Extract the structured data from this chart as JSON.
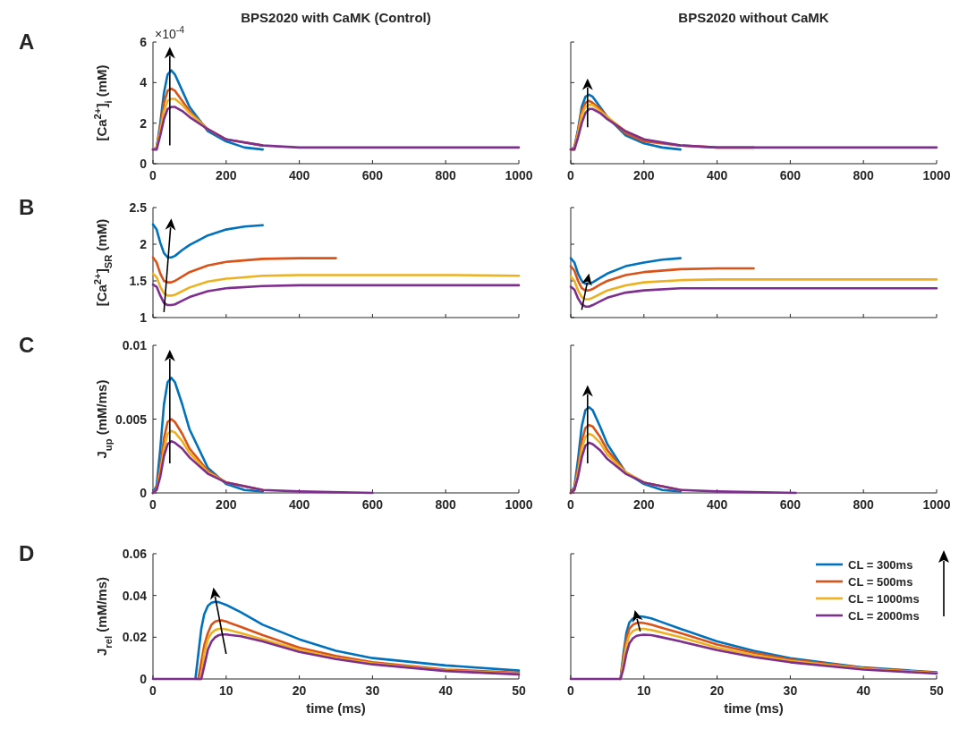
{
  "chart_data": [
    {
      "type": "line",
      "title": "BPS2020 with CaMK (Control)",
      "ylabel": "[Ca$^{2+}$]$_{i}$ (mM)",
      "annotations": [
        "A",
        "×10$^{-4}$"
      ],
      "xlim": [
        0,
        1000
      ],
      "xticks": [
        0,
        200,
        400,
        600,
        800,
        1000
      ],
      "ylim": [
        0,
        6
      ],
      "yticks": [
        0,
        2,
        4,
        6
      ],
      "series": [
        {
          "color": "#0072bd",
          "x": [
            0,
            10,
            20,
            30,
            40,
            50,
            60,
            80,
            100,
            150,
            200,
            250,
            300
          ],
          "values": [
            0.7,
            0.8,
            2,
            3.5,
            4.4,
            4.6,
            4.4,
            3.6,
            2.8,
            1.6,
            1.1,
            0.8,
            0.7
          ]
        },
        {
          "color": "#d95319",
          "x": [
            0,
            10,
            20,
            30,
            40,
            50,
            60,
            80,
            100,
            150,
            200,
            300
          ],
          "values": [
            0.7,
            0.8,
            1.8,
            3,
            3.6,
            3.7,
            3.6,
            3.1,
            2.6,
            1.7,
            1.2,
            0.9
          ]
        },
        {
          "color": "#edb120",
          "x": [
            0,
            10,
            20,
            30,
            40,
            50,
            60,
            80,
            100,
            150,
            200
          ],
          "values": [
            0.7,
            0.8,
            1.6,
            2.6,
            3.1,
            3.2,
            3.2,
            2.9,
            2.5,
            1.7,
            1.2
          ]
        },
        {
          "color": "#7e2f8e",
          "x": [
            0,
            10,
            20,
            30,
            40,
            50,
            60,
            80,
            100,
            150,
            200,
            300,
            400,
            600,
            800,
            1000
          ],
          "values": [
            0.7,
            0.7,
            1.4,
            2.2,
            2.7,
            2.8,
            2.8,
            2.6,
            2.3,
            1.7,
            1.2,
            0.9,
            0.8,
            0.8,
            0.8,
            0.8
          ]
        }
      ]
    },
    {
      "type": "line",
      "title": "BPS2020 without CaMK",
      "tick_labels": "x",
      "xlim": [
        0,
        1000
      ],
      "xticks": [
        0,
        200,
        400,
        600,
        800,
        1000
      ],
      "ylim": [
        0,
        6
      ],
      "yticks": [
        0,
        2,
        4,
        6
      ],
      "series": [
        {
          "color": "#0072bd",
          "x": [
            0,
            10,
            20,
            30,
            40,
            50,
            60,
            80,
            100,
            150,
            200,
            250,
            300
          ],
          "values": [
            0.7,
            0.8,
            1.7,
            2.8,
            3.3,
            3.4,
            3.3,
            2.8,
            2.3,
            1.4,
            1,
            0.8,
            0.7
          ]
        },
        {
          "color": "#d95319",
          "x": [
            0,
            10,
            20,
            30,
            40,
            50,
            60,
            80,
            100,
            150,
            200,
            300,
            400,
            500
          ],
          "values": [
            0.7,
            0.8,
            1.6,
            2.6,
            3,
            3.1,
            3,
            2.7,
            2.3,
            1.5,
            1.1,
            0.9,
            0.8,
            0.8
          ]
        },
        {
          "color": "#edb120",
          "x": [
            0,
            10,
            20,
            30,
            40,
            50,
            60,
            80,
            100,
            150,
            200
          ],
          "values": [
            0.7,
            0.7,
            1.5,
            2.4,
            2.8,
            2.9,
            2.9,
            2.6,
            2.3,
            1.6,
            1.2
          ]
        },
        {
          "color": "#7e2f8e",
          "x": [
            0,
            10,
            20,
            30,
            40,
            50,
            60,
            80,
            100,
            150,
            200,
            300,
            400,
            600,
            800,
            1000
          ],
          "values": [
            0.7,
            0.7,
            1.3,
            2,
            2.5,
            2.7,
            2.7,
            2.5,
            2.2,
            1.6,
            1.2,
            0.9,
            0.8,
            0.8,
            0.8,
            0.8
          ]
        }
      ]
    },
    {
      "type": "line",
      "ylabel": "[Ca$^{2+}$]$_{SR}$ (mM)",
      "annotations": [
        "B"
      ],
      "tick_labels": "y",
      "xlim": [
        0,
        1000
      ],
      "xticks": [
        0,
        200,
        400,
        600,
        800,
        1000
      ],
      "ylim": [
        1,
        2.5
      ],
      "yticks": [
        1,
        1.5,
        2,
        2.5
      ],
      "series": [
        {
          "color": "#0072bd",
          "x": [
            0,
            10,
            20,
            30,
            40,
            50,
            60,
            80,
            100,
            150,
            200,
            250,
            300
          ],
          "values": [
            2.27,
            2.2,
            2.02,
            1.88,
            1.82,
            1.82,
            1.84,
            1.92,
            1.99,
            2.12,
            2.2,
            2.24,
            2.26
          ]
        },
        {
          "color": "#d95319",
          "x": [
            0,
            10,
            20,
            30,
            40,
            50,
            60,
            80,
            100,
            150,
            200,
            300,
            400,
            500
          ],
          "values": [
            1.82,
            1.75,
            1.6,
            1.5,
            1.48,
            1.48,
            1.5,
            1.56,
            1.62,
            1.71,
            1.76,
            1.8,
            1.81,
            1.81
          ]
        },
        {
          "color": "#edb120",
          "x": [
            0,
            10,
            20,
            30,
            40,
            50,
            60,
            80,
            100,
            150,
            200,
            300,
            400,
            600,
            800,
            1000
          ],
          "values": [
            1.6,
            1.55,
            1.42,
            1.33,
            1.3,
            1.3,
            1.31,
            1.36,
            1.41,
            1.49,
            1.53,
            1.57,
            1.58,
            1.58,
            1.58,
            1.57
          ]
        },
        {
          "color": "#7e2f8e",
          "x": [
            0,
            10,
            20,
            30,
            40,
            50,
            60,
            80,
            100,
            150,
            200,
            300,
            400,
            600,
            800,
            1000
          ],
          "values": [
            1.45,
            1.42,
            1.3,
            1.2,
            1.17,
            1.17,
            1.18,
            1.23,
            1.28,
            1.36,
            1.4,
            1.43,
            1.44,
            1.44,
            1.44,
            1.44
          ]
        }
      ]
    },
    {
      "type": "line",
      "tick_labels": false,
      "xlim": [
        0,
        1000
      ],
      "xticks": [
        0,
        200,
        400,
        600,
        800,
        1000
      ],
      "ylim": [
        1,
        2.5
      ],
      "yticks": [
        1,
        1.5,
        2,
        2.5
      ],
      "series": [
        {
          "color": "#0072bd",
          "x": [
            0,
            10,
            20,
            30,
            40,
            50,
            60,
            80,
            100,
            150,
            200,
            250,
            300
          ],
          "values": [
            1.81,
            1.75,
            1.6,
            1.5,
            1.46,
            1.46,
            1.48,
            1.54,
            1.6,
            1.7,
            1.75,
            1.79,
            1.81
          ]
        },
        {
          "color": "#d95319",
          "x": [
            0,
            10,
            20,
            30,
            40,
            50,
            60,
            80,
            100,
            150,
            200,
            300,
            400,
            500
          ],
          "values": [
            1.7,
            1.64,
            1.5,
            1.4,
            1.37,
            1.37,
            1.39,
            1.45,
            1.5,
            1.58,
            1.62,
            1.66,
            1.67,
            1.67
          ]
        },
        {
          "color": "#edb120",
          "x": [
            0,
            10,
            20,
            30,
            40,
            50,
            60,
            80,
            100,
            150,
            200,
            300,
            400,
            600,
            800,
            1000
          ],
          "values": [
            1.56,
            1.5,
            1.37,
            1.28,
            1.25,
            1.25,
            1.27,
            1.32,
            1.37,
            1.44,
            1.48,
            1.51,
            1.52,
            1.52,
            1.52,
            1.52
          ]
        },
        {
          "color": "#7e2f8e",
          "x": [
            0,
            10,
            20,
            30,
            40,
            50,
            60,
            80,
            100,
            150,
            200,
            300,
            400,
            600,
            800,
            1000
          ],
          "values": [
            1.42,
            1.38,
            1.26,
            1.18,
            1.15,
            1.15,
            1.17,
            1.22,
            1.27,
            1.34,
            1.37,
            1.4,
            1.4,
            1.4,
            1.4,
            1.4
          ]
        }
      ]
    },
    {
      "type": "line",
      "ylabel": "J$_{up}$ (mM/ms)",
      "annotations": [
        "C"
      ],
      "xlim": [
        0,
        1000
      ],
      "xticks": [
        0,
        200,
        400,
        600,
        800,
        1000
      ],
      "ylim": [
        0,
        0.01
      ],
      "yticks": [
        0,
        0.005,
        0.01
      ],
      "series": [
        {
          "color": "#0072bd",
          "x": [
            0,
            10,
            20,
            30,
            40,
            50,
            60,
            80,
            100,
            150,
            200,
            250,
            300
          ],
          "values": [
            0,
            0.0005,
            0.003,
            0.006,
            0.0075,
            0.0078,
            0.0075,
            0.006,
            0.0043,
            0.0017,
            0.0006,
            0.0002,
            0.0001
          ]
        },
        {
          "color": "#d95319",
          "x": [
            0,
            10,
            20,
            30,
            40,
            50,
            60,
            80,
            100,
            150,
            200,
            300
          ],
          "values": [
            0,
            0.0003,
            0.0018,
            0.0037,
            0.0048,
            0.005,
            0.0048,
            0.004,
            0.003,
            0.0015,
            0.0007,
            0.0002
          ]
        },
        {
          "color": "#edb120",
          "x": [
            0,
            10,
            20,
            30,
            40,
            50,
            60,
            80,
            100,
            150,
            200,
            300
          ],
          "values": [
            0,
            0.0002,
            0.0014,
            0.003,
            0.004,
            0.0042,
            0.0041,
            0.0035,
            0.0027,
            0.0014,
            0.0007,
            0.0002
          ]
        },
        {
          "color": "#7e2f8e",
          "x": [
            0,
            10,
            20,
            30,
            40,
            50,
            60,
            80,
            100,
            150,
            200,
            300,
            400,
            600
          ],
          "values": [
            0,
            0.0002,
            0.0011,
            0.0025,
            0.0033,
            0.0035,
            0.0034,
            0.003,
            0.0024,
            0.0013,
            0.0007,
            0.0002,
            0.0001,
            0
          ]
        }
      ]
    },
    {
      "type": "line",
      "tick_labels": "x",
      "xlim": [
        0,
        1000
      ],
      "xticks": [
        0,
        200,
        400,
        600,
        800,
        1000
      ],
      "ylim": [
        0,
        0.01
      ],
      "yticks": [
        0,
        0.005,
        0.01
      ],
      "series": [
        {
          "color": "#0072bd",
          "x": [
            0,
            10,
            20,
            30,
            40,
            50,
            60,
            80,
            100,
            150,
            200,
            250,
            300
          ],
          "values": [
            0,
            0.0004,
            0.0023,
            0.0045,
            0.0056,
            0.0058,
            0.0056,
            0.0045,
            0.0033,
            0.0014,
            0.0006,
            0.0002,
            0.0001
          ]
        },
        {
          "color": "#d95319",
          "x": [
            0,
            10,
            20,
            30,
            40,
            50,
            60,
            80,
            100,
            150,
            200,
            300
          ],
          "values": [
            0,
            0.0003,
            0.0017,
            0.0035,
            0.0044,
            0.0046,
            0.0045,
            0.0038,
            0.0029,
            0.0014,
            0.0007,
            0.0002
          ]
        },
        {
          "color": "#edb120",
          "x": [
            0,
            10,
            20,
            30,
            40,
            50,
            60,
            80,
            100,
            150,
            200,
            300
          ],
          "values": [
            0,
            0.0002,
            0.0014,
            0.003,
            0.0038,
            0.004,
            0.0039,
            0.0034,
            0.0026,
            0.0014,
            0.0007,
            0.0002
          ]
        },
        {
          "color": "#7e2f8e",
          "x": [
            0,
            10,
            20,
            30,
            40,
            50,
            60,
            80,
            100,
            150,
            200,
            300,
            400,
            615
          ],
          "values": [
            0,
            0.0002,
            0.0011,
            0.0024,
            0.0032,
            0.0034,
            0.0033,
            0.0029,
            0.0023,
            0.0013,
            0.0007,
            0.0002,
            0.0001,
            0
          ]
        }
      ]
    },
    {
      "type": "line",
      "ylabel": "J$_{rel}$ (mM/ms)",
      "xlabel": "time (ms)",
      "annotations": [
        "D"
      ],
      "xlim": [
        0,
        50
      ],
      "xticks": [
        0,
        10,
        20,
        30,
        40,
        50
      ],
      "ylim": [
        0,
        0.06
      ],
      "yticks": [
        0,
        0.02,
        0.04,
        0.06
      ],
      "series": [
        {
          "color": "#0072bd",
          "x": [
            5.8,
            6.2,
            6.6,
            7,
            7.5,
            8,
            8.5,
            9,
            10,
            12,
            15,
            20,
            25,
            30,
            40,
            50
          ],
          "values": [
            0,
            0.012,
            0.024,
            0.031,
            0.035,
            0.0365,
            0.037,
            0.0368,
            0.0355,
            0.032,
            0.026,
            0.019,
            0.0135,
            0.01,
            0.0065,
            0.004
          ]
        },
        {
          "color": "#d95319",
          "x": [
            6.2,
            6.6,
            7,
            7.5,
            8,
            8.5,
            9,
            9.5,
            10,
            12,
            15,
            20,
            25,
            30,
            40,
            50
          ],
          "values": [
            0,
            0.008,
            0.016,
            0.022,
            0.026,
            0.0275,
            0.028,
            0.028,
            0.0275,
            0.025,
            0.021,
            0.015,
            0.011,
            0.008,
            0.0045,
            0.003
          ]
        },
        {
          "color": "#edb120",
          "x": [
            6.2,
            6.6,
            7,
            7.5,
            8,
            8.5,
            9,
            9.5,
            10,
            12,
            15,
            20,
            25,
            30,
            40,
            50
          ],
          "values": [
            0,
            0,
            0.012,
            0.019,
            0.022,
            0.0235,
            0.024,
            0.024,
            0.0238,
            0.022,
            0.019,
            0.014,
            0.01,
            0.0075,
            0.004,
            0.0025
          ]
        },
        {
          "color": "#7e2f8e",
          "x": [
            0,
            5,
            6.2,
            6.6,
            7,
            7.5,
            8,
            8.5,
            9,
            9.5,
            10,
            12,
            15,
            20,
            25,
            30,
            40,
            50
          ],
          "values": [
            0,
            0,
            0,
            0,
            0.006,
            0.014,
            0.018,
            0.02,
            0.021,
            0.0213,
            0.0213,
            0.0205,
            0.018,
            0.013,
            0.0095,
            0.007,
            0.0038,
            0.0022
          ]
        }
      ]
    },
    {
      "type": "line",
      "xlabel": "time (ms)",
      "tick_labels": "x",
      "legend": "top right",
      "xlim": [
        0,
        50
      ],
      "xticks": [
        0,
        10,
        20,
        30,
        40,
        50
      ],
      "ylim": [
        0,
        0.06
      ],
      "yticks": [
        0,
        0.02,
        0.04,
        0.06
      ],
      "series": [
        {
          "name": "CL = 300ms",
          "color": "#0072bd",
          "x": [
            6.8,
            7.2,
            7.6,
            8,
            8.5,
            9,
            9.5,
            10,
            11,
            12,
            15,
            20,
            25,
            30,
            40,
            50
          ],
          "values": [
            0,
            0.012,
            0.022,
            0.027,
            0.029,
            0.0298,
            0.03,
            0.0298,
            0.029,
            0.0278,
            0.024,
            0.018,
            0.0135,
            0.01,
            0.0055,
            0.0032
          ]
        },
        {
          "name": "CL = 500ms",
          "color": "#d95319",
          "x": [
            6.8,
            7.2,
            7.6,
            8,
            8.5,
            9,
            9.5,
            10,
            11,
            12,
            15,
            20,
            25,
            30,
            40,
            50
          ],
          "values": [
            0,
            0.01,
            0.019,
            0.024,
            0.026,
            0.0268,
            0.027,
            0.0268,
            0.026,
            0.025,
            0.022,
            0.0165,
            0.0125,
            0.0093,
            0.0052,
            0.003
          ]
        },
        {
          "name": "CL = 1000ms",
          "color": "#edb120",
          "x": [
            6.8,
            7.2,
            7.6,
            8,
            8.5,
            9,
            9.5,
            10,
            11,
            12,
            15,
            20,
            25,
            30,
            40,
            50
          ],
          "values": [
            0,
            0.008,
            0.016,
            0.021,
            0.023,
            0.0238,
            0.024,
            0.024,
            0.0235,
            0.0226,
            0.02,
            0.015,
            0.0115,
            0.0087,
            0.0049,
            0.0028
          ]
        },
        {
          "name": "CL = 2000ms",
          "color": "#7e2f8e",
          "x": [
            0,
            5,
            6.8,
            7.2,
            7.6,
            8,
            8.5,
            9,
            9.5,
            10,
            11,
            12,
            15,
            20,
            25,
            30,
            40,
            50
          ],
          "values": [
            0,
            0,
            0,
            0.005,
            0.012,
            0.017,
            0.0195,
            0.0207,
            0.021,
            0.0212,
            0.021,
            0.0203,
            0.018,
            0.0138,
            0.0105,
            0.008,
            0.0045,
            0.0026
          ]
        }
      ]
    }
  ]
}
